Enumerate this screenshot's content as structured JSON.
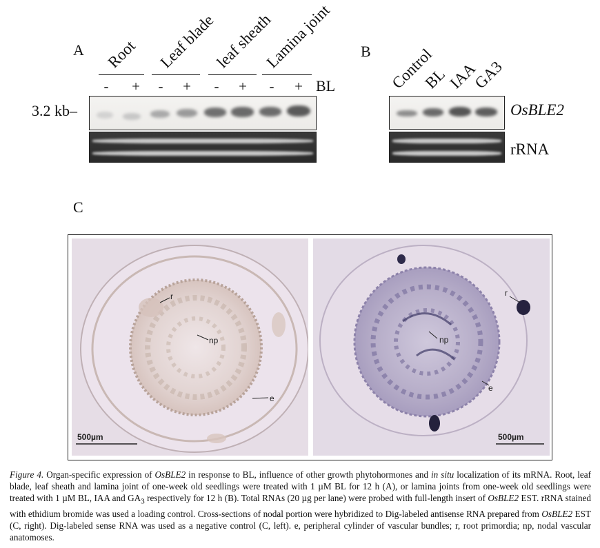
{
  "panel_a": {
    "letter": "A",
    "groups": [
      "Root",
      "Leaf blade",
      "leaf sheath",
      "Lamina joint"
    ],
    "signs": [
      "-",
      "+",
      "-",
      "+",
      "-",
      "+",
      "-",
      "+"
    ],
    "treatment_label": "BL",
    "size_label": "3.2 kb"
  },
  "panel_b": {
    "letter": "B",
    "lanes": [
      "Control",
      "BL",
      "IAA",
      "GA3"
    ],
    "gene_label": "OsBLE2",
    "rrna_label": "rRNA"
  },
  "panel_c": {
    "letter": "C",
    "left": {
      "scale_label": "500µm",
      "labels": {
        "r": "r",
        "np": "np",
        "e": "e"
      }
    },
    "right": {
      "scale_label": "500µm",
      "labels": {
        "r": "r",
        "np": "np",
        "e": "e"
      }
    }
  },
  "caption": {
    "figure_label": "Figure 4.",
    "s1": " Organ-specific expression of ",
    "gene1": "OsBLE2",
    "s2": " in response to BL, influence of other growth phytohormones and ",
    "insitu": "in situ",
    "s3": " localization of its mRNA. Root, leaf blade, leaf sheath and lamina joint of one-week old seedlings were treated with 1 µM BL for 12 h (A), or lamina joints from one-week old seedlings were treated with 1 µM BL, IAA and GA",
    "sub3": "3",
    "s4": " respectively for 12 h (B). Total RNAs (20 µg per lane) were probed with full-length insert of ",
    "gene2": "OsBLE2",
    "s5": " EST. rRNA stained with ethidium bromide was used a loading control. Cross-sections of nodal portion were hybridized to Dig-labeled antisense RNA prepared from ",
    "gene3": "OsBLE2",
    "s6": " EST (C, right). Dig-labeled sense RNA was used as a negative control (C, left). e, peripheral cylinder of vascular bundles; r, root primordia; np, nodal vascular anatomoses."
  }
}
